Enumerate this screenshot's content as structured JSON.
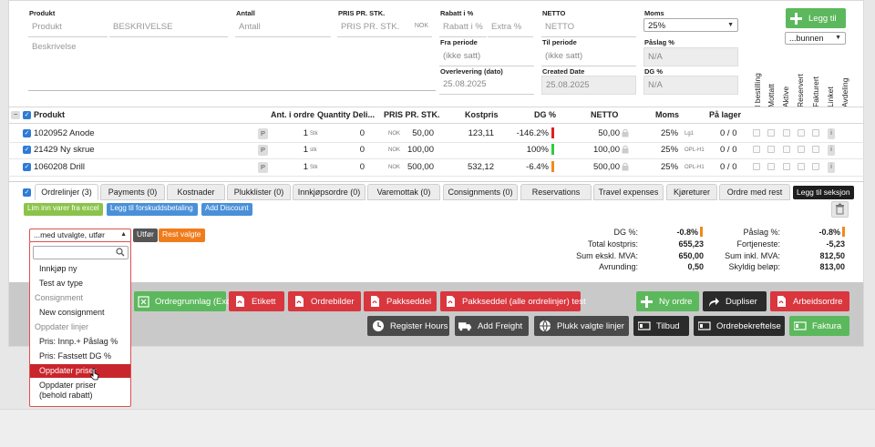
{
  "form": {
    "produkt_label": "Produkt",
    "produkt_placeholder": "Produkt",
    "beskrivelse_placeholder": "BESKRIVELSE",
    "beskrivelse_area_placeholder": "Beskrivelse",
    "antall_label": "Antall",
    "antall_placeholder": "Antall",
    "pris_label": "PRIS PR. STK.",
    "pris_placeholder": "PRIS PR. STK.",
    "pris_currency": "NOK",
    "rabatt_label": "Rabatt i %",
    "rabatt_placeholder": "Rabatt i %",
    "extra_placeholder": "Extra %",
    "netto_label": "NETTO",
    "netto_placeholder": "NETTO",
    "moms_label": "Moms",
    "moms_value": "25%",
    "legg_til_label": "Legg til",
    "position_value": "...bunnen",
    "fra_periode_label": "Fra periode",
    "fra_periode_value": "(ikke satt)",
    "til_periode_label": "Til periode",
    "til_periode_value": "(ikke satt)",
    "paslag_label": "Påslag %",
    "paslag_value": "N/A",
    "overlevering_label": "Overlevering (dato)",
    "overlevering_value": "25.08.2025",
    "created_label": "Created Date",
    "created_value": "25.08.2025",
    "dg_label": "DG %",
    "dg_value": "N/A"
  },
  "vertical_headers": [
    "I bestilling",
    "Mottatt",
    "Aktive",
    "Reservert",
    "Fakturert",
    "Linket",
    "Avdeling"
  ],
  "table": {
    "headers": {
      "produkt": "Produkt",
      "ant": "Ant. i ordre",
      "qty": "Quantity Deli...",
      "pris": "PRIS PR. STK.",
      "kostpris": "Kostpris",
      "dg": "DG %",
      "netto": "NETTO",
      "moms": "Moms",
      "lager": "På lager"
    },
    "rows": [
      {
        "produkt": "1020952 Anode",
        "p": "P",
        "ant": "1",
        "unit": "Stk",
        "qty": "0",
        "cur": "NOK",
        "pris": "50,00",
        "kostpris": "123,11",
        "dg": "-146.2%",
        "dg_color": "#e02020",
        "netto": "50,00",
        "moms": "25%",
        "code": "Lg1",
        "lager": "0 / 0",
        "i": "i"
      },
      {
        "produkt": "21429 Ny skrue",
        "p": "P",
        "ant": "1",
        "unit": "stk",
        "qty": "0",
        "cur": "NOK",
        "pris": "100,00",
        "kostpris": "",
        "dg": "100%",
        "dg_color": "#2ecc40",
        "netto": "100,00",
        "moms": "25%",
        "code": "OPL-H1",
        "lager": "0 / 0",
        "i": "i"
      },
      {
        "produkt": "1060208 Drill",
        "p": "P",
        "ant": "1",
        "unit": "Stk",
        "qty": "0",
        "cur": "NOK",
        "pris": "500,00",
        "kostpris": "532,12",
        "dg": "-6.4%",
        "dg_color": "#f08a1c",
        "netto": "500,00",
        "moms": "25%",
        "code": "OPL-H1",
        "lager": "0 / 0",
        "i": "i"
      }
    ]
  },
  "tabs": [
    "Ordrelinjer (3)",
    "Payments (0)",
    "Kostnader",
    "Plukklister (0)",
    "Innkjøpsordre (0)",
    "Varemottak (0)",
    "Consignments (0)",
    "Reservations",
    "Travel expenses",
    "Kjøreturer",
    "Ordre med rest"
  ],
  "legg_til_seksjon": "Legg til seksjon",
  "actions": {
    "lim_inn": "Lim inn varer fra excel",
    "forskudd": "Legg til forskuddsbetaling",
    "discount": "Add Discount",
    "bulk_select": "...med utvalgte, utfør",
    "utfor": "Utfør",
    "rest_valgte": "Rest valgte"
  },
  "summary": {
    "dg_label": "DG %:",
    "dg_value": "-0.8%",
    "kost_label": "Total kostpris:",
    "kost_value": "655,23",
    "eks_label": "Sum ekskl. MVA:",
    "eks_value": "650,00",
    "avr_label": "Avrunding:",
    "avr_value": "0,50",
    "paslag_label": "Påslag %:",
    "paslag_value": "-0.8%",
    "fort_label": "Fortjeneste:",
    "fort_value": "-5,23",
    "inkl_label": "Sum inkl. MVA:",
    "inkl_value": "812,50",
    "skyldig_label": "Skyldig beløp:",
    "skyldig_value": "813,00"
  },
  "dropdown": {
    "items": {
      "innkjop": "Innkjøp ny",
      "test": "Test av type",
      "g_consignment": "Consignment",
      "new_consignment": "New consignment",
      "g_oppdater": "Oppdater linjer",
      "pris_paslag": "Pris: Innp.+ Påslag %",
      "pris_dg": "Pris: Fastsett DG %",
      "oppdater": "Oppdater priser",
      "oppdater_behold": "Oppdater priser (behold rabatt)"
    }
  },
  "buttons": {
    "ordregrunnlag": "Ordregrunnlag (Excel)",
    "etikett": "Etikett",
    "ordrebilder": "Ordrebilder",
    "pakkseddel": "Pakkseddel",
    "pakkseddel_alle": "Pakkseddel (alle ordrelinjer) test",
    "ny_ordre": "Ny ordre",
    "dupliser": "Dupliser",
    "arbeidsordre": "Arbeidsordre",
    "register_hours": "Register Hours",
    "add_freight": "Add Freight",
    "plukk": "Plukk valgte linjer",
    "tilbud": "Tilbud",
    "ordrebekreftelse": "Ordrebekreftelse",
    "faktura": "Faktura"
  },
  "colors": {
    "green": "#5cb85c",
    "red": "#d9363e",
    "dark": "#4a4a4a",
    "blue": "#2e7bd6",
    "orange": "#f08a1c"
  }
}
